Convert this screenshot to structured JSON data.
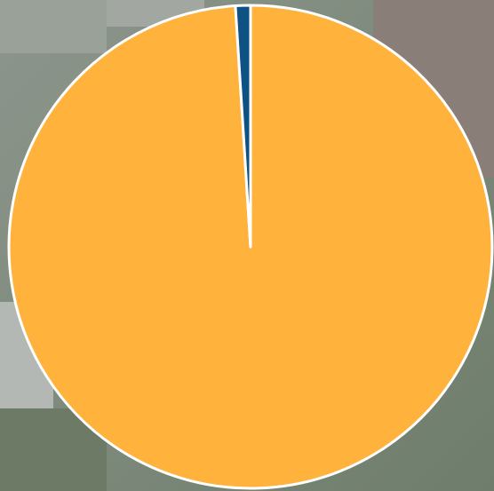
{
  "chart_data": {
    "type": "pie",
    "values": [
      99,
      1
    ],
    "colors": [
      "#ffb33c",
      "#0d5283"
    ],
    "start_angle": 0,
    "direction": "clockwise"
  }
}
